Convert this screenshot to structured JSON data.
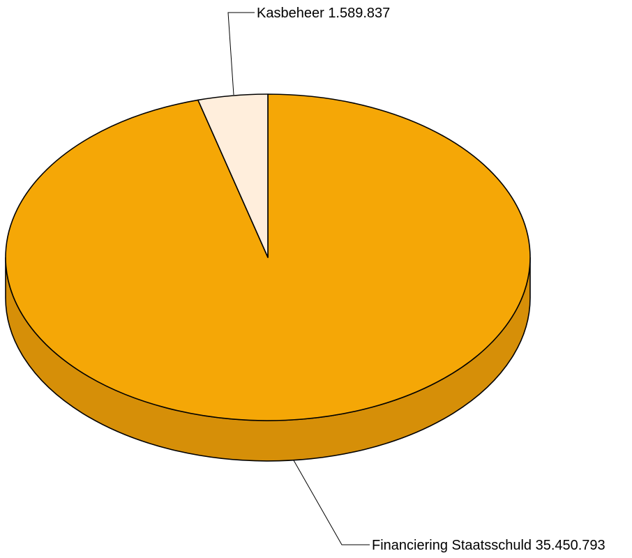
{
  "chart_data": {
    "type": "pie",
    "style": "3d",
    "slices": [
      {
        "label": "Kasbeheer",
        "value": 1589837,
        "value_text": "1.589.837",
        "color": "#FFEEDC"
      },
      {
        "label": "Financiering Staatsschuld",
        "value": 35450793,
        "value_text": "35.450.793",
        "color": "#F5A706"
      }
    ],
    "side_color": "#D68F08",
    "outline_color": "#000000"
  }
}
